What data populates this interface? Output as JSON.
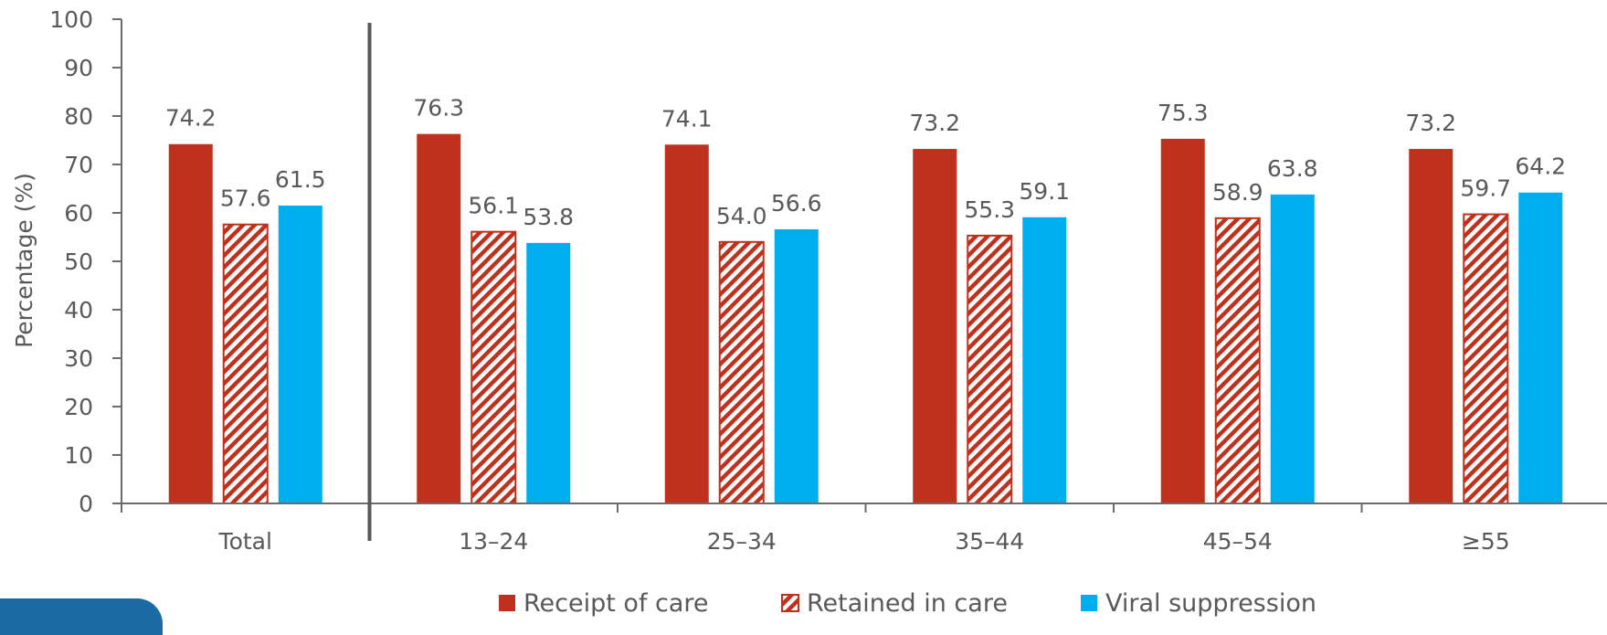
{
  "chart_data": {
    "type": "bar",
    "categories": [
      "Total",
      "13–24",
      "25–34",
      "35–44",
      "45–54",
      "≥55"
    ],
    "series": [
      {
        "name": "Receipt of care",
        "values": [
          74.2,
          76.3,
          74.1,
          73.2,
          75.3,
          73.2
        ]
      },
      {
        "name": "Retained in care",
        "values": [
          57.6,
          56.1,
          54.0,
          55.3,
          58.9,
          59.7
        ]
      },
      {
        "name": "Viral suppression",
        "values": [
          61.5,
          53.8,
          56.6,
          59.1,
          63.8,
          64.2
        ]
      }
    ],
    "data_labels": [
      [
        "74.2",
        "76.3",
        "74.1",
        "73.2",
        "75.3",
        "73.2"
      ],
      [
        "57.6",
        "56.1",
        "54.0",
        "55.3",
        "58.9",
        "59.7"
      ],
      [
        "61.5",
        "53.8",
        "56.6",
        "59.1",
        "63.8",
        "64.2"
      ]
    ],
    "ylabel": "Percentage (%)",
    "xlabel": "",
    "ylim": [
      0,
      100
    ],
    "yticks": [
      "0",
      "10",
      "20",
      "30",
      "40",
      "50",
      "60",
      "70",
      "80",
      "90",
      "100"
    ],
    "grid": false,
    "legend_position": "bottom",
    "colors": {
      "receipt": "#c0311d",
      "retained_stripe": "#c0311d",
      "retained_bg": "#ffffff",
      "viral": "#00aeef",
      "axis": "#6b6b6b",
      "text": "#404040"
    },
    "patterns": [
      "solid",
      "diagonal-stripes",
      "solid"
    ]
  }
}
